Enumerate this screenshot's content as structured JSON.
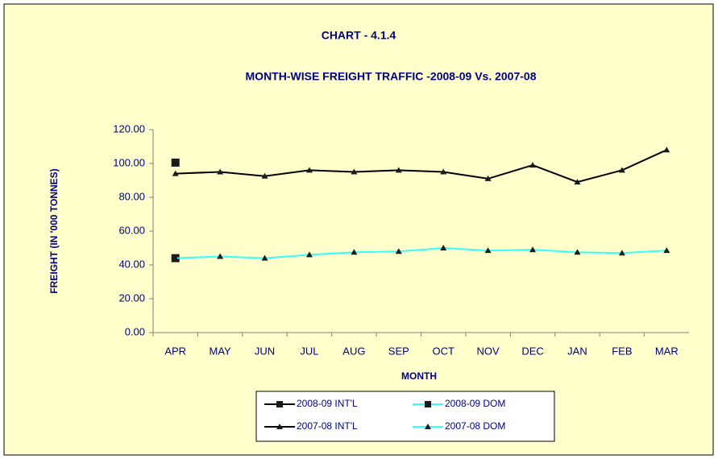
{
  "chart_data": {
    "type": "line",
    "title": "CHART - 4.1.4",
    "subtitle": "MONTH-WISE FREIGHT TRAFFIC -2008-09 Vs. 2007-08",
    "x_label": "MONTH",
    "y_label": "FREIGHT (IN '000 TONNES)",
    "categories": [
      "APR",
      "MAY",
      "JUN",
      "JUL",
      "AUG",
      "SEP",
      "OCT",
      "NOV",
      "DEC",
      "JAN",
      "FEB",
      "MAR"
    ],
    "series": [
      {
        "name": "2008-09 INT'L",
        "color": "#000000",
        "marker": "square",
        "values": [
          100.5,
          null,
          null,
          null,
          null,
          null,
          null,
          null,
          null,
          null,
          null,
          null
        ]
      },
      {
        "name": "2008-09 DOM",
        "color": "#33ffff",
        "marker": "square",
        "values": [
          44,
          null,
          null,
          null,
          null,
          null,
          null,
          null,
          null,
          null,
          null,
          null
        ]
      },
      {
        "name": "2007-08 INT'L",
        "color": "#000000",
        "marker": "triangle",
        "values": [
          94,
          95,
          92.5,
          96,
          95,
          96,
          95,
          91,
          99,
          89,
          96,
          108
        ]
      },
      {
        "name": "2007-08 DOM",
        "color": "#33ffff",
        "marker": "triangle",
        "values": [
          44,
          45,
          44,
          46,
          47.5,
          48,
          50,
          48.5,
          49,
          47.5,
          47,
          48.5
        ]
      }
    ],
    "ylim": [
      0,
      120
    ],
    "yticks": [
      {
        "value": 0,
        "label": "0.00"
      },
      {
        "value": 20,
        "label": "20.00"
      },
      {
        "value": 40,
        "label": "40.00"
      },
      {
        "value": 60,
        "label": "60.00"
      },
      {
        "value": 80,
        "label": "80.00"
      },
      {
        "value": 100,
        "label": "100.00"
      },
      {
        "value": 120,
        "label": "120.00"
      }
    ],
    "legend": "bottom"
  }
}
